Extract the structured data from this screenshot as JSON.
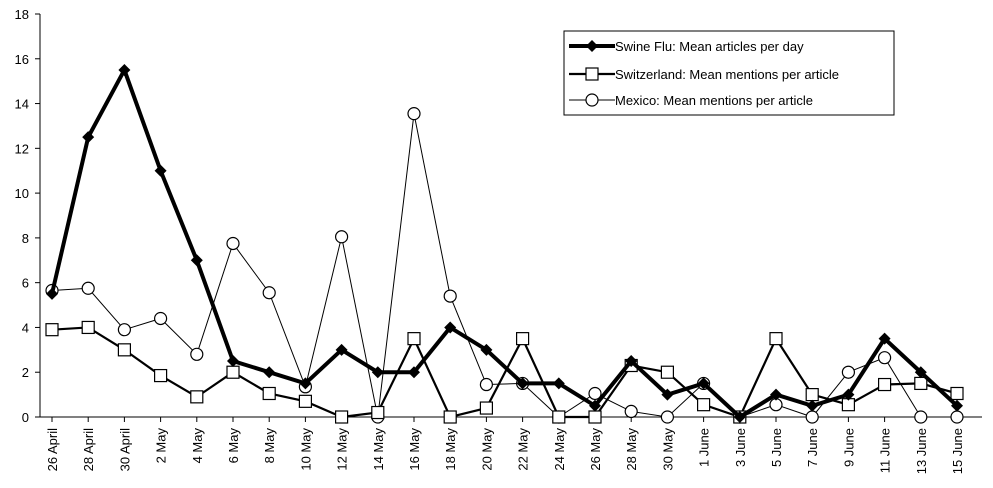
{
  "chart_data": {
    "type": "line",
    "title": "",
    "xlabel": "",
    "ylabel": "",
    "ylim": [
      0,
      18
    ],
    "yticks": [
      "0",
      "2",
      "4",
      "6",
      "8",
      "10",
      "12",
      "14",
      "16",
      "18"
    ],
    "grid": false,
    "legend_position": "top-right",
    "x": [
      "26 April",
      "28 April",
      "30 April",
      "2 May",
      "4 May",
      "6 May",
      "8 May",
      "10 May",
      "12 May",
      "14 May",
      "16 May",
      "18 May",
      "20 May",
      "22 May",
      "24 May",
      "26 May",
      "28 May",
      "30 May",
      "1 June",
      "3 June",
      "5 June",
      "7 June",
      "9 June",
      "11 June",
      "13 June",
      "15 June"
    ],
    "series": [
      {
        "name": "Swine Flu: Mean articles per day",
        "marker": "filled-diamond",
        "line_weight": "thick",
        "values": [
          5.5,
          12.5,
          15.5,
          11,
          7,
          2.5,
          2,
          1.5,
          3,
          2,
          2,
          4,
          3,
          1.5,
          1.5,
          0.5,
          2.5,
          1,
          1.5,
          0,
          1,
          0.5,
          1,
          3.5,
          2,
          0.5
        ]
      },
      {
        "name": "Switzerland: Mean mentions per article",
        "marker": "open-square",
        "line_weight": "medium",
        "values": [
          3.9,
          4,
          3,
          1.85,
          0.9,
          2,
          1.05,
          0.7,
          0,
          0.2,
          3.5,
          0,
          0.4,
          3.5,
          0,
          0,
          2.3,
          2,
          0.55,
          0,
          3.5,
          1,
          0.55,
          1.45,
          1.5,
          1.05
        ]
      },
      {
        "name": "Mexico: Mean mentions per article",
        "marker": "open-circle",
        "line_weight": "thin",
        "values": [
          5.65,
          5.75,
          3.9,
          4.4,
          2.8,
          7.75,
          5.55,
          1.35,
          8.05,
          0,
          13.55,
          5.4,
          1.45,
          1.5,
          0,
          1.05,
          0.25,
          0,
          1.5,
          0,
          0.55,
          0,
          2,
          2.65,
          0,
          0
        ]
      }
    ]
  }
}
